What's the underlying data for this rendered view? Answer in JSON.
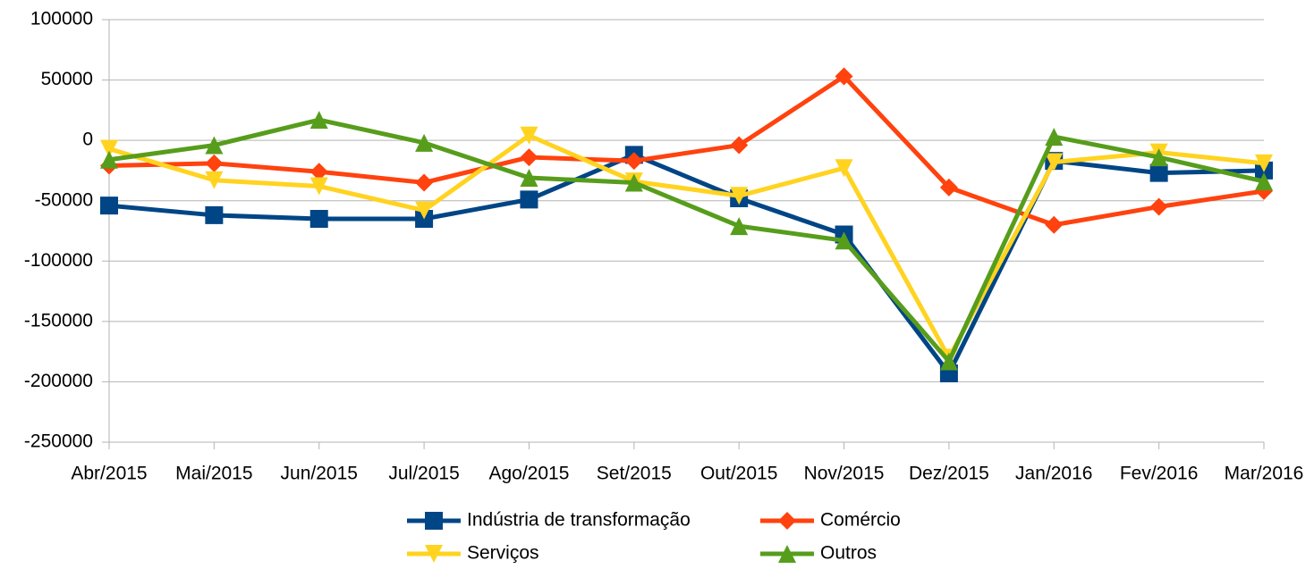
{
  "chart_data": {
    "type": "line",
    "categories": [
      "Abr/2015",
      "Mai/2015",
      "Jun/2015",
      "Jul/2015",
      "Ago/2015",
      "Set/2015",
      "Out/2015",
      "Nov/2015",
      "Dez/2015",
      "Jan/2016",
      "Fev/2016",
      "Mar/2016"
    ],
    "series": [
      {
        "name": "Indústria de transformação",
        "color": "#004586",
        "marker": "square",
        "values": [
          -54000,
          -62000,
          -65000,
          -65000,
          -49000,
          -12000,
          -48000,
          -78000,
          -193000,
          -17000,
          -27000,
          -25000
        ]
      },
      {
        "name": "Comércio",
        "color": "#ff420e",
        "marker": "diamond",
        "values": [
          -21000,
          -19000,
          -26000,
          -35000,
          -14000,
          -17000,
          -4000,
          53000,
          -39000,
          -70000,
          -55000,
          -42000
        ]
      },
      {
        "name": "Serviços",
        "color": "#ffd320",
        "marker": "triangle-down",
        "values": [
          -7000,
          -33000,
          -38000,
          -58000,
          4000,
          -34000,
          -46000,
          -23000,
          -180000,
          -18000,
          -10000,
          -19000
        ]
      },
      {
        "name": "Outros",
        "color": "#579d1c",
        "marker": "triangle-up",
        "values": [
          -16000,
          -4000,
          17000,
          -2000,
          -31000,
          -35000,
          -71000,
          -83000,
          -183000,
          3000,
          -14000,
          -34000
        ]
      }
    ],
    "ylim": [
      -250000,
      100000
    ],
    "yticks": [
      -250000,
      -200000,
      -150000,
      -100000,
      -50000,
      0,
      50000,
      100000
    ],
    "grid": true,
    "legend": "bottom"
  }
}
